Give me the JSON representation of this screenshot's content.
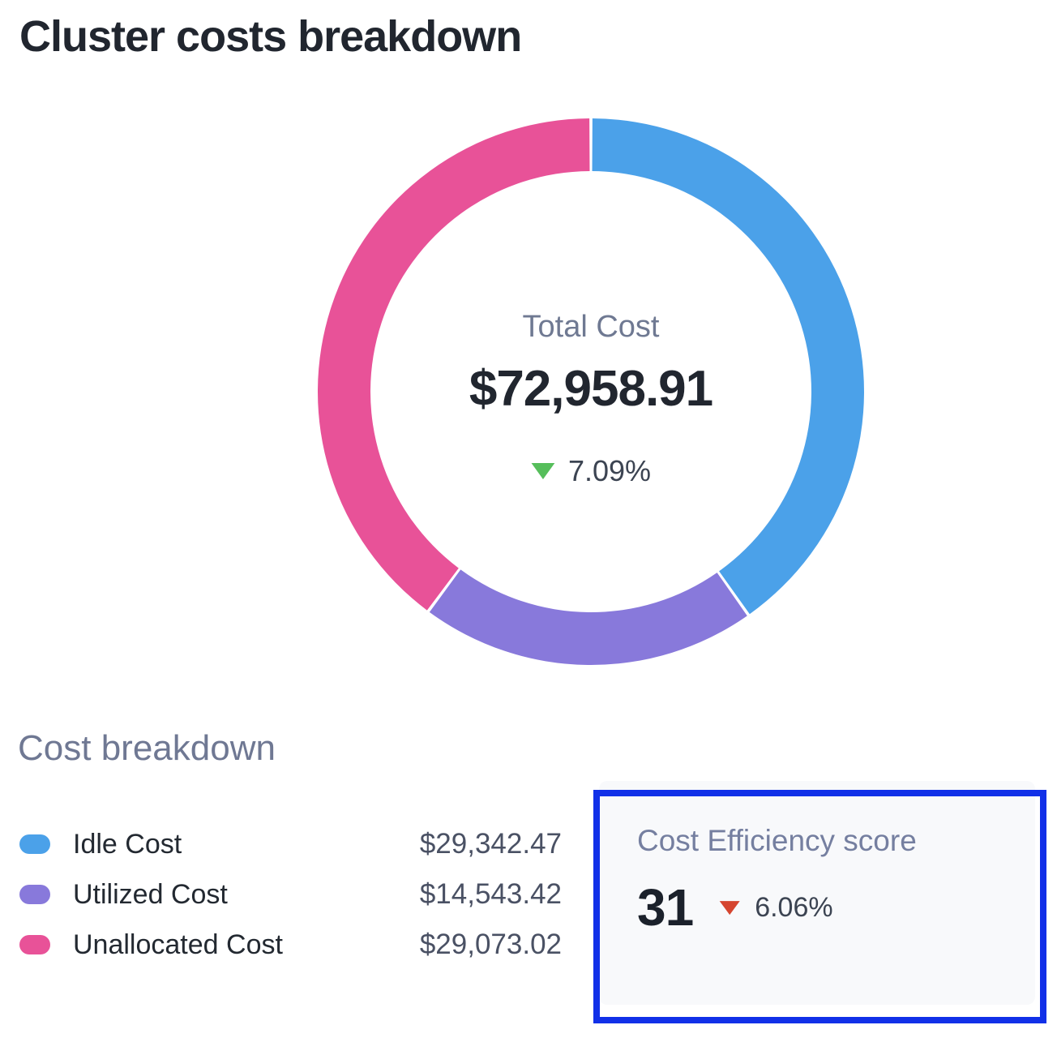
{
  "page": {
    "title": "Cluster costs breakdown"
  },
  "chart_data": {
    "type": "pie",
    "subtype": "donut",
    "title": "Cluster costs breakdown",
    "total_label": "Total Cost",
    "total_display": "$72,958.91",
    "total_value": 72958.91,
    "delta": {
      "display": "7.09%",
      "direction": "down",
      "icon_color": "#56be5b"
    },
    "segments": [
      {
        "label": "Idle Cost",
        "value": 29342.47,
        "display": "$29,342.47",
        "color": "#4ba1e9"
      },
      {
        "label": "Utilized Cost",
        "value": 14543.42,
        "display": "$14,543.42",
        "color": "#8879db"
      },
      {
        "label": "Unallocated Cost",
        "value": 29073.02,
        "display": "$29,073.02",
        "color": "#e85298"
      }
    ],
    "start_angle_deg": 0,
    "direction": "clockwise",
    "legend_position": "bottom-left"
  },
  "breakdown": {
    "heading": "Cost breakdown"
  },
  "efficiency": {
    "heading": "Cost Efficiency score",
    "score": "31",
    "delta": {
      "display": "6.06%",
      "direction": "down",
      "icon_color": "#d5452f"
    },
    "highlight_color": "#1130e8",
    "card_background": "#f8f9fb"
  }
}
